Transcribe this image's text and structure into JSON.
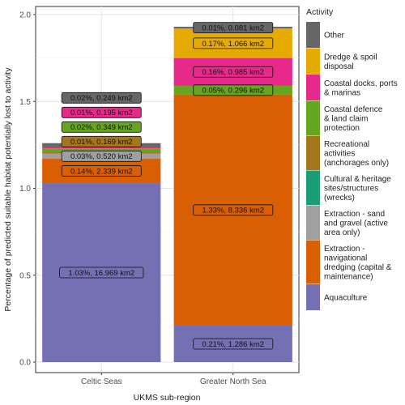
{
  "chart_data": {
    "type": "bar",
    "stacked": true,
    "title": "",
    "xlabel": "UKMS sub-region",
    "ylabel": "Percentage of predicted suitable habitat potentially lost to activity",
    "ylim": [
      0,
      2.0
    ],
    "yticks": [
      "0.0",
      "0.5",
      "1.0",
      "1.5",
      "2.0"
    ],
    "grid": true,
    "legend_title": "Activity",
    "legend_position": "right",
    "categories": [
      "Celtic Seas",
      "Greater North Sea"
    ],
    "series": [
      {
        "name": "Aquaculture",
        "color": "#7570b3",
        "values": [
          1.03,
          0.21
        ],
        "labels": [
          "1.03%,  16.969 km2",
          "0.21%,  1.286 km2"
        ]
      },
      {
        "name": "Extraction - navigational dredging (capital & maintenance)",
        "color": "#d95f02",
        "values": [
          0.14,
          1.33
        ],
        "labels": [
          "0.14%,  2.339 km2",
          "1.33%,  8.336 km2"
        ]
      },
      {
        "name": "Extraction - sand and gravel (active area only)",
        "color": "#a0a0a0",
        "values": [
          0.03,
          0
        ],
        "labels": [
          "0.03%,  0.520 km2",
          ""
        ]
      },
      {
        "name": "Cultural & heritage sites/structures (wrecks)",
        "color": "#1b9e77",
        "values": [
          0,
          0
        ],
        "labels": [
          "",
          ""
        ]
      },
      {
        "name": "Recreational activities (anchorages only)",
        "color": "#a6761d",
        "values": [
          0.01,
          0
        ],
        "labels": [
          "0.01%,  0.169 km2",
          ""
        ]
      },
      {
        "name": "Coastal defence & land claim protection",
        "color": "#66a61e",
        "values": [
          0.02,
          0.05
        ],
        "labels": [
          "0.02%,  0.349 km2",
          "0.05%,  0.296 km2"
        ]
      },
      {
        "name": "Coastal docks, ports & marinas",
        "color": "#e7298a",
        "values": [
          0.01,
          0.16
        ],
        "labels": [
          "0.01%,  0.195 km2",
          "0.16%,  0.985 km2"
        ]
      },
      {
        "name": "Dredge & spoil disposal",
        "color": "#e6ab02",
        "values": [
          0,
          0.17
        ],
        "labels": [
          "",
          "0.17%,  1.066 km2"
        ]
      },
      {
        "name": "Other",
        "color": "#666666",
        "values": [
          0.02,
          0.01
        ],
        "labels": [
          "0.02%,  0.249 km2",
          "0.01%,  0.081 km2"
        ]
      }
    ],
    "legend": [
      {
        "lines": [
          "Other"
        ],
        "color": "#666666"
      },
      {
        "lines": [
          "Dredge & spoil",
          "disposal"
        ],
        "color": "#e6ab02"
      },
      {
        "lines": [
          "Coastal docks, ports",
          "& marinas"
        ],
        "color": "#e7298a"
      },
      {
        "lines": [
          "Coastal defence",
          "& land claim",
          "protection"
        ],
        "color": "#66a61e"
      },
      {
        "lines": [
          "Recreational",
          "activities",
          "(anchorages only)"
        ],
        "color": "#a6761d"
      },
      {
        "lines": [
          "Cultural & heritage",
          "sites/structures",
          "(wrecks)"
        ],
        "color": "#1b9e77"
      },
      {
        "lines": [
          "Extraction - sand",
          "and gravel (active",
          "area only)"
        ],
        "color": "#a0a0a0"
      },
      {
        "lines": [
          "Extraction -",
          "navigational",
          "dredging (capital &",
          "maintenance)"
        ],
        "color": "#d95f02"
      },
      {
        "lines": [
          "Aquaculture"
        ],
        "color": "#7570b3"
      }
    ]
  }
}
